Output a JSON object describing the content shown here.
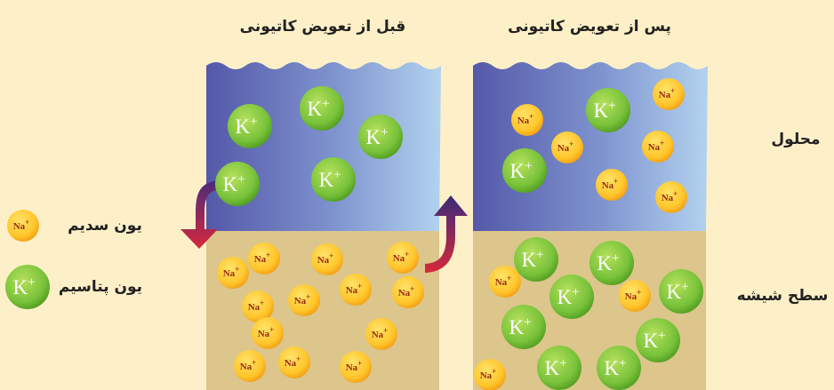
{
  "titles": {
    "before": "قبل از تعویض کاتیونی",
    "after": "پس از تعویض کاتیونی"
  },
  "regions": {
    "solution": "محلول",
    "glass_surface": "سطح شیشه"
  },
  "legend": {
    "sodium": "یون سدیم",
    "potassium": "یون پتاسیم"
  },
  "ions": {
    "potassium_symbol": "K",
    "sodium_symbol": "Na",
    "charge": "+"
  }
}
